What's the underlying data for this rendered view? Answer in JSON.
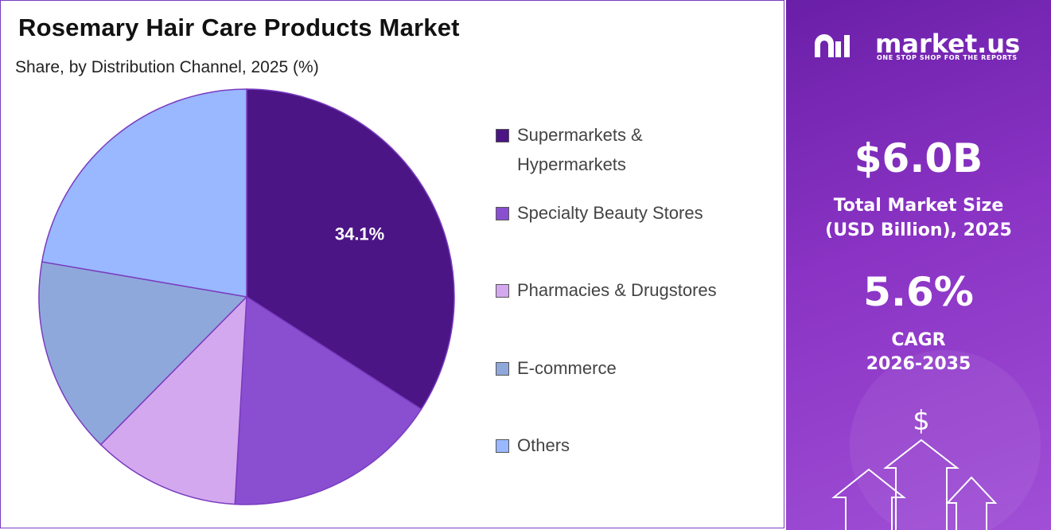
{
  "chart_data": {
    "type": "pie",
    "title": "Rosemary Hair Care Products Market",
    "subtitle": "Share, by Distribution Channel, 2025 (%)",
    "categories": [
      "Supermarkets & Hypermarkets",
      "Specialty Beauty Stores",
      "Pharmacies & Drugstores",
      "E-commerce",
      "Others"
    ],
    "values": [
      34.1,
      16.8,
      11.5,
      15.3,
      22.3
    ],
    "value_labels": [
      "34.1%",
      null,
      null,
      null,
      null
    ],
    "colors": [
      "#4b1585",
      "#8a4fd1",
      "#d4a8ee",
      "#8fa8db",
      "#99b8ff"
    ],
    "legend": "right"
  },
  "side_panel": {
    "brand": "market.us",
    "tagline": "ONE STOP SHOP FOR THE REPORTS",
    "market_size": "$6.0B",
    "market_size_label": "Total Market Size (USD Billion), 2025",
    "cagr": "5.6%",
    "cagr_label": "CAGR",
    "cagr_period": "2026-2035"
  }
}
